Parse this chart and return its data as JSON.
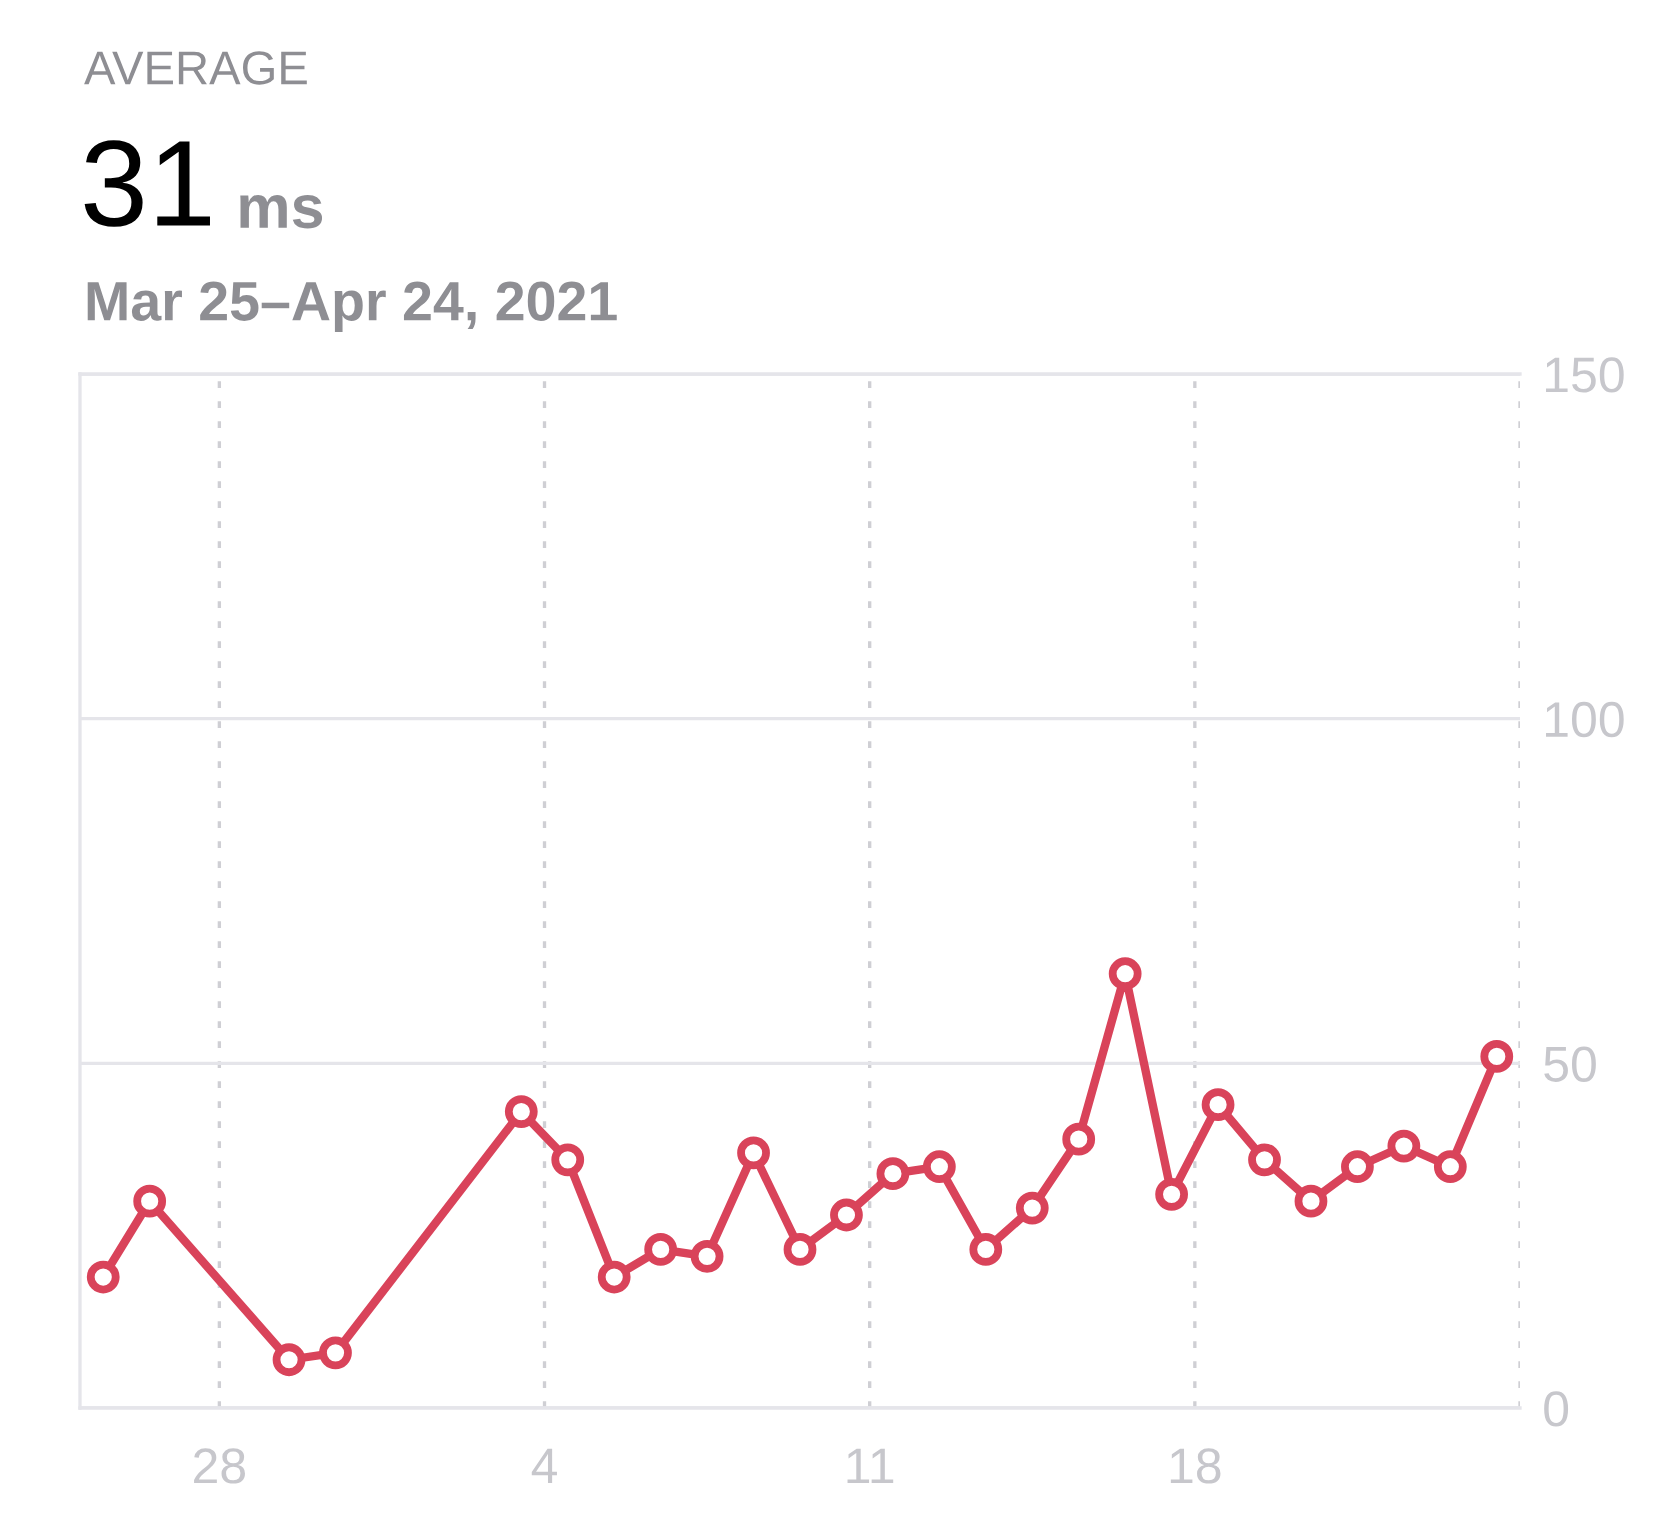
{
  "chart_data": {
    "type": "line",
    "title": "AVERAGE",
    "subtitle": "Mar 25–Apr 24, 2021",
    "annotations": [
      "31",
      "ms"
    ],
    "x": [
      "2021-03-25T12:00",
      "2021-03-26T12:00",
      "2021-03-29T12:00",
      "2021-03-30T12:00",
      "2021-04-03T12:00",
      "2021-04-04T12:00",
      "2021-04-05T12:00",
      "2021-04-06T12:00",
      "2021-04-07T12:00",
      "2021-04-08T12:00",
      "2021-04-09T12:00",
      "2021-04-10T12:00",
      "2021-04-11T12:00",
      "2021-04-12T12:00",
      "2021-04-13T12:00",
      "2021-04-14T12:00",
      "2021-04-15T12:00",
      "2021-04-16T12:00",
      "2021-04-17T12:00",
      "2021-04-18T12:00",
      "2021-04-19T12:00",
      "2021-04-20T12:00",
      "2021-04-21T12:00",
      "2021-04-22T12:00",
      "2021-04-23T12:00",
      "2021-04-24T12:00"
    ],
    "series": [
      {
        "color": "#d9435a",
        "values": [
          19,
          30,
          7,
          8,
          43,
          36,
          19,
          23,
          22,
          37,
          23,
          28,
          34,
          35,
          23,
          29,
          39,
          63,
          31,
          44,
          36,
          30,
          35,
          38,
          35,
          51
        ]
      }
    ],
    "xlim": [
      "2021-03-25",
      "2021-04-25"
    ],
    "xticks": [
      {
        "value": "2021-03-28",
        "label": "28"
      },
      {
        "value": "2021-04-04",
        "label": "4"
      },
      {
        "value": "2021-04-11",
        "label": "11"
      },
      {
        "value": "2021-04-18",
        "label": "18"
      },
      {
        "value": "2021-04-25",
        "label": null
      }
    ],
    "ylim": [
      0,
      150
    ],
    "yticks": [
      0,
      50,
      100,
      150
    ],
    "grid": true,
    "marker": "circle",
    "line_style": "solid",
    "legend": false
  }
}
